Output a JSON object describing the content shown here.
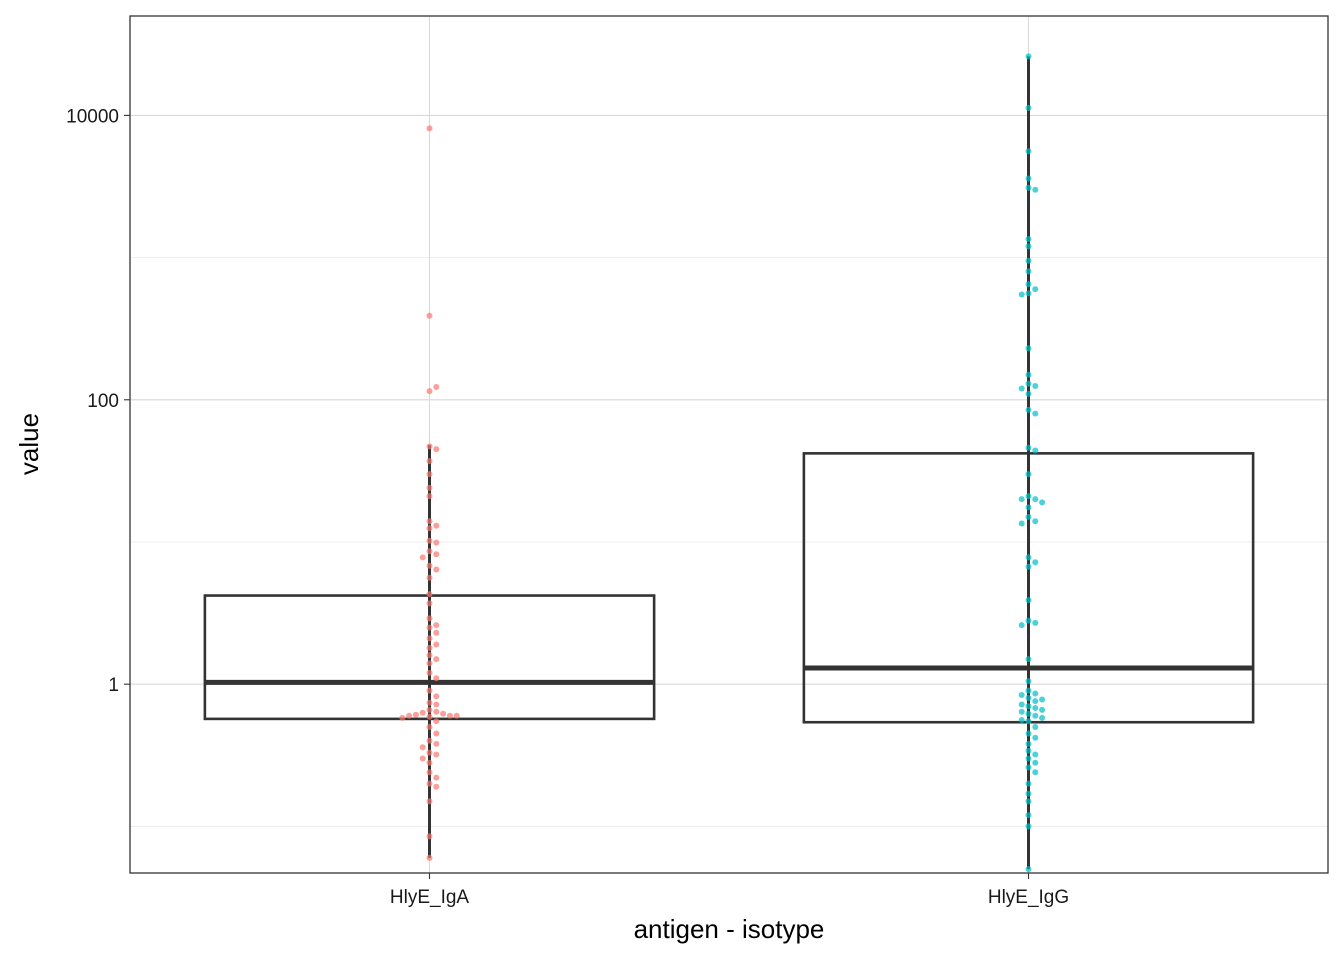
{
  "chart_data": {
    "type": "box",
    "xlabel": "antigen - isotype",
    "ylabel": "value",
    "y_scale": "log10",
    "ylim": [
      0.047,
      50000
    ],
    "yticks": [
      1,
      100,
      10000
    ],
    "ytick_labels": [
      "1",
      "100",
      "10000"
    ],
    "grid": true,
    "categories": [
      "HlyE_IgA",
      "HlyE_IgG"
    ],
    "colors": {
      "HlyE_IgA": "#F8766D",
      "HlyE_IgG": "#00BFC4",
      "box": "#333333"
    },
    "boxes": [
      {
        "category": "HlyE_IgA",
        "whisker_low": 0.06,
        "q1": 0.57,
        "median": 1.03,
        "q3": 4.2,
        "whisker_high": 48
      },
      {
        "category": "HlyE_IgG",
        "whisker_low": 0.05,
        "q1": 0.54,
        "median": 1.3,
        "q3": 42,
        "whisker_high": 26000
      }
    ],
    "points": {
      "HlyE_IgA": [
        8100,
        390,
        115,
        123,
        47,
        45,
        37,
        30,
        24,
        21,
        14,
        13,
        12.5,
        10.2,
        9.9,
        8.6,
        8.2,
        7.8,
        6.8,
        6.4,
        5.6,
        4.3,
        3.7,
        2.9,
        2.6,
        2.5,
        2.3,
        2.1,
        1.9,
        1.8,
        1.6,
        1.5,
        1.4,
        1.2,
        1.1,
        0.9,
        0.82,
        0.74,
        0.72,
        0.66,
        0.64,
        0.63,
        0.62,
        0.61,
        0.6,
        0.6,
        0.6,
        0.59,
        0.58,
        0.55,
        0.5,
        0.45,
        0.4,
        0.38,
        0.36,
        0.33,
        0.32,
        0.3,
        0.28,
        0.24,
        0.22,
        0.2,
        0.19,
        0.15,
        0.06,
        0.085
      ],
      "HlyE_IgG": [
        26000,
        11300,
        5600,
        3600,
        3100,
        3000,
        1350,
        1200,
        950,
        800,
        650,
        600,
        560,
        550,
        230,
        150,
        130,
        125,
        120,
        110,
        85,
        80,
        46,
        44,
        30,
        21,
        20,
        20,
        19,
        17.5,
        15,
        14,
        13.5,
        7.8,
        7.2,
        6.7,
        3.9,
        2.8,
        2.7,
        2.6,
        1.5,
        1.05,
        0.9,
        0.86,
        0.84,
        0.8,
        0.78,
        0.76,
        0.72,
        0.7,
        0.68,
        0.66,
        0.64,
        0.62,
        0.6,
        0.58,
        0.56,
        0.55,
        0.5,
        0.45,
        0.42,
        0.38,
        0.34,
        0.32,
        0.3,
        0.28,
        0.26,
        0.24,
        0.2,
        0.17,
        0.15,
        0.12,
        0.1,
        0.05
      ]
    }
  }
}
